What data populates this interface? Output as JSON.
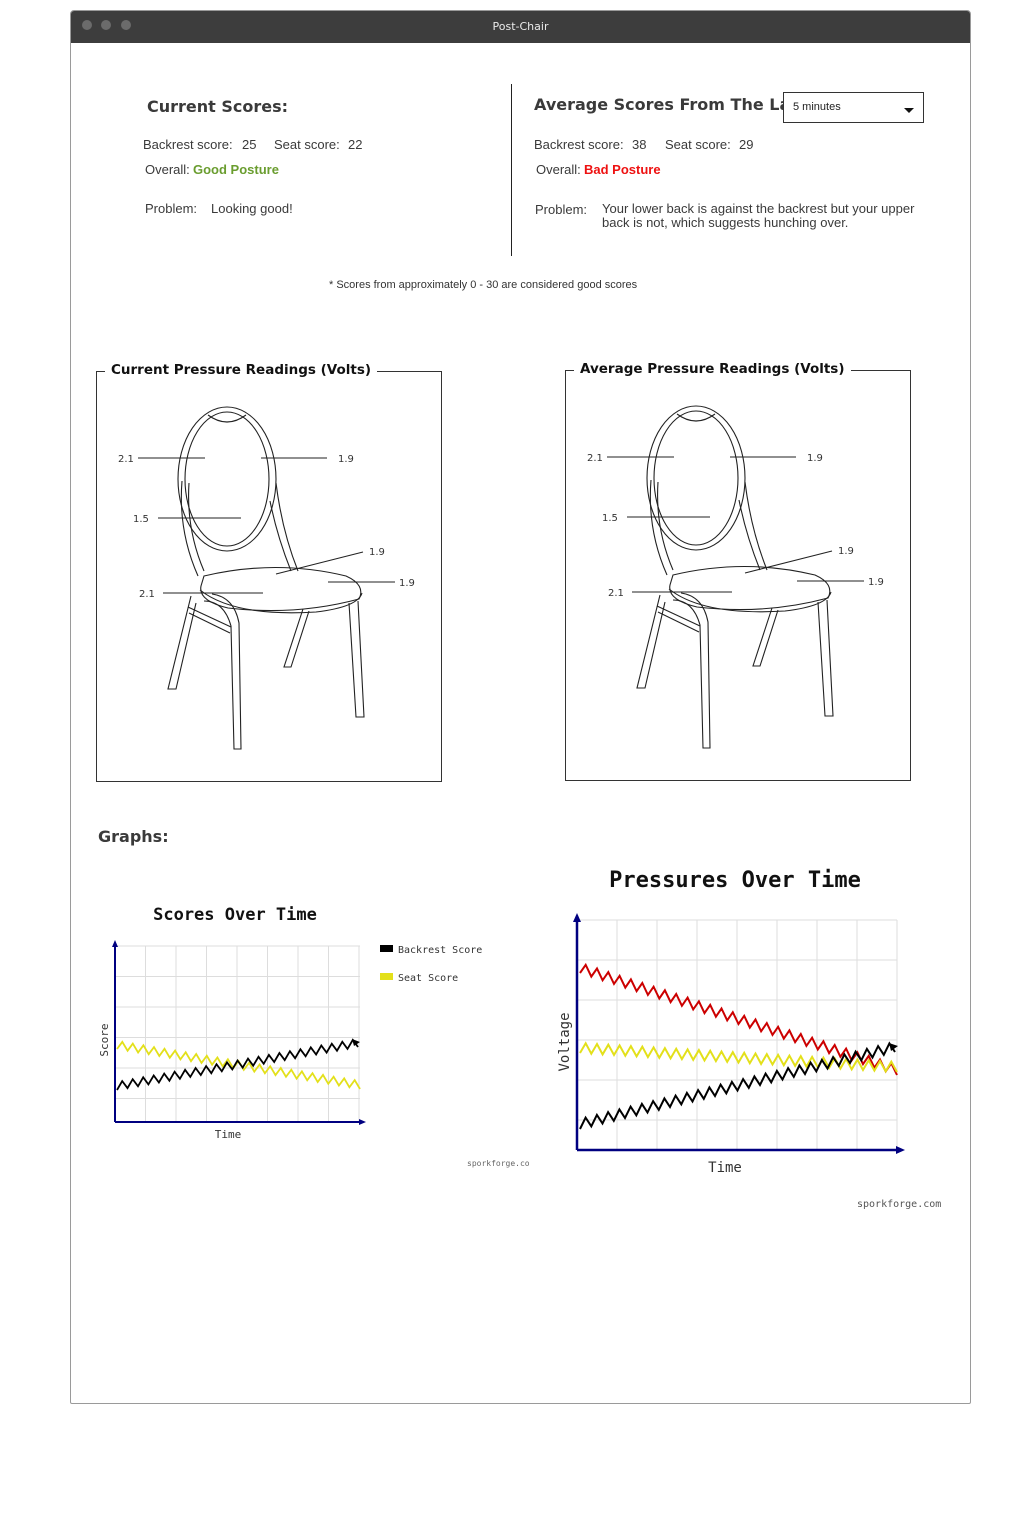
{
  "window": {
    "title": "Post-Chair"
  },
  "current": {
    "heading": "Current Scores:",
    "backrest_label": "Backrest score:",
    "backrest_value": "25",
    "seat_label": "Seat score:",
    "seat_value": "22",
    "overall_label": "Overall:",
    "overall_value": "Good Posture",
    "overall_color": "#6a9d2f",
    "problem_label": "Problem:",
    "problem_value": "Looking good!"
  },
  "average": {
    "heading": "Average Scores From The Last",
    "select_value": "5 minutes",
    "backrest_label": "Backrest score:",
    "backrest_value": "38",
    "seat_label": "Seat score:",
    "seat_value": "29",
    "overall_label": "Overall:",
    "overall_value": "Bad Posture",
    "overall_color": "#ee1111",
    "problem_label": "Problem:",
    "problem_value_line1": "Your lower back is against the backrest but your upper",
    "problem_value_line2": "back is not, which suggests hunching over."
  },
  "note": "* Scores from approximately 0 - 30 are considered good scores",
  "current_pressure": {
    "title": "Current Pressure Readings (Volts)",
    "readings": {
      "back_upper_left": "2.1",
      "back_upper_right": "1.9",
      "back_lower": "1.5",
      "seat_back": "1.9",
      "seat_right": "1.9",
      "seat_left": "2.1"
    }
  },
  "average_pressure": {
    "title": "Average Pressure Readings (Volts)",
    "readings": {
      "back_upper_left": "2.1",
      "back_upper_right": "1.9",
      "back_lower": "1.5",
      "seat_back": "1.9",
      "seat_right": "1.9",
      "seat_left": "2.1"
    }
  },
  "graphs": {
    "heading": "Graphs:",
    "scores_chart": {
      "title": "Scores Over Time",
      "xlabel": "Time",
      "ylabel": "Score",
      "legend": [
        "Backrest Score",
        "Seat Score"
      ],
      "credit": "sporkforge.co"
    },
    "pressures_chart": {
      "title": "Pressures Over Time",
      "xlabel": "Time",
      "ylabel": "Voltage",
      "credit": "sporkforge.com"
    }
  },
  "colors": {
    "backrest": "#000000",
    "seat": "#e3e01a",
    "pressure_red": "#cc0000",
    "axis": "#000080"
  }
}
